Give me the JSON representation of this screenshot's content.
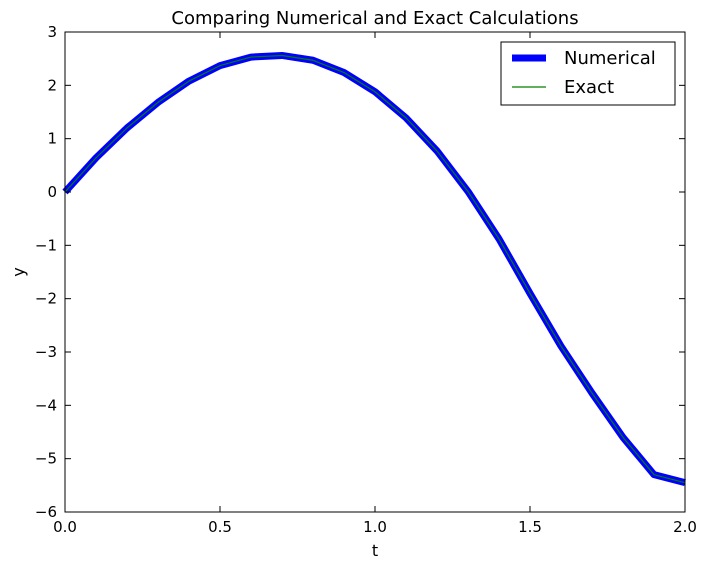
{
  "chart_data": {
    "type": "line",
    "title": "Comparing Numerical and Exact Calculations",
    "xlabel": "t",
    "ylabel": "y",
    "xlim": [
      0.0,
      2.0
    ],
    "ylim": [
      -6,
      3
    ],
    "xticks": [
      "0.0",
      "0.5",
      "1.0",
      "1.5",
      "2.0"
    ],
    "yticks": [
      "3",
      "2",
      "1",
      "0",
      "−1",
      "−2",
      "−3",
      "−4",
      "−5",
      "−6"
    ],
    "grid": false,
    "legend_position": "top-right",
    "x": [
      0.0,
      0.1,
      0.2,
      0.3,
      0.4,
      0.5,
      0.6,
      0.7,
      0.8,
      0.9,
      1.0,
      1.1,
      1.2,
      1.3,
      1.4,
      1.5,
      1.6,
      1.7,
      1.8,
      1.9,
      2.0
    ],
    "series": [
      {
        "name": "Numerical",
        "color": "#0000ff",
        "values": [
          0.0,
          0.64,
          1.2,
          1.68,
          2.08,
          2.37,
          2.53,
          2.56,
          2.47,
          2.24,
          1.88,
          1.39,
          0.77,
          0.01,
          -0.88,
          -1.9,
          -2.89,
          -3.77,
          -4.6,
          -5.3,
          -5.45
        ]
      },
      {
        "name": "Exact",
        "color": "#008000",
        "values": [
          0.0,
          0.64,
          1.2,
          1.68,
          2.08,
          2.37,
          2.53,
          2.56,
          2.47,
          2.24,
          1.88,
          1.39,
          0.77,
          0.01,
          -0.88,
          -1.9,
          -2.89,
          -3.77,
          -4.6,
          -5.3,
          -5.45
        ]
      }
    ]
  }
}
